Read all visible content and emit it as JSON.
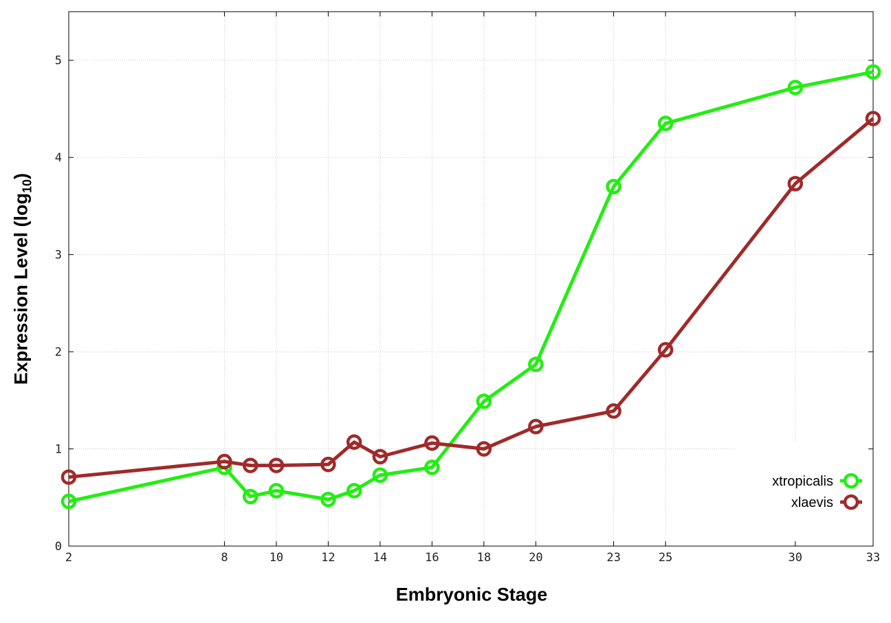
{
  "chart_data": {
    "type": "line",
    "xlabel": "Embryonic Stage",
    "ylabel_main": "Expression Level (log",
    "ylabel_sub": "10",
    "ylabel_close": ")",
    "xlim": [
      2,
      33
    ],
    "ylim": [
      0,
      5.5
    ],
    "x_ticks": [
      2,
      8,
      10,
      12,
      14,
      16,
      18,
      20,
      23,
      25,
      30,
      33
    ],
    "y_ticks": [
      0,
      1,
      2,
      3,
      4,
      5
    ],
    "grid": true,
    "legend_position": "bottom-right",
    "series": [
      {
        "name": "xtropicalis",
        "color": "#22ee11",
        "x": [
          2,
          8,
          9,
          10,
          12,
          13,
          14,
          16,
          18,
          20,
          23,
          25,
          30,
          33
        ],
        "y": [
          0.46,
          0.81,
          0.51,
          0.57,
          0.48,
          0.57,
          0.73,
          0.81,
          1.49,
          1.87,
          3.7,
          4.35,
          4.72,
          4.88
        ]
      },
      {
        "name": "xlaevis",
        "color": "#a02a2a",
        "x": [
          2,
          8,
          9,
          10,
          12,
          13,
          14,
          16,
          18,
          20,
          23,
          25,
          30,
          33
        ],
        "y": [
          0.71,
          0.87,
          0.83,
          0.83,
          0.84,
          1.07,
          0.92,
          1.06,
          1.0,
          1.23,
          1.39,
          2.02,
          3.73,
          4.4
        ]
      }
    ]
  }
}
